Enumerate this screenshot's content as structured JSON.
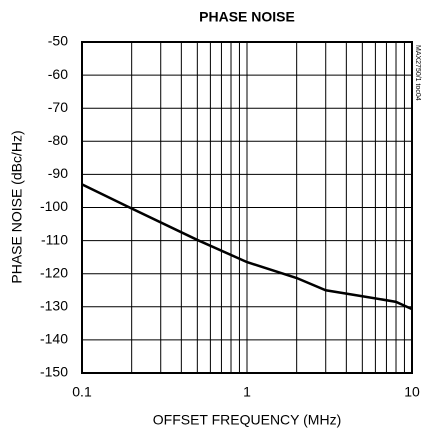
{
  "chart_data": {
    "type": "line",
    "title": "PHASE NOISE",
    "xlabel": "OFFSET FREQUENCY (MHz)",
    "ylabel": "PHASE NOISE (dBc/Hz)",
    "annotation": "MAX2750/1 toc04",
    "xscale": "log",
    "x": [
      0.1,
      0.2,
      0.5,
      1,
      2,
      3,
      5,
      8,
      10
    ],
    "series": [
      {
        "name": "phase-noise",
        "color": "#000000",
        "values": [
          -93,
          -100.3,
          -109.8,
          -116.5,
          -121.3,
          -125,
          -126.8,
          -128.5,
          -130.7
        ]
      }
    ],
    "xlim": [
      0.1,
      10
    ],
    "xticks": [
      0.1,
      1,
      10
    ],
    "x_minor_ticks": [
      0.2,
      0.3,
      0.4,
      0.5,
      0.6,
      0.7,
      0.8,
      0.9,
      2,
      3,
      4,
      5,
      6,
      7,
      8,
      9
    ],
    "ylim": [
      -150,
      -50
    ],
    "yticks": [
      -50,
      -60,
      -70,
      -80,
      -90,
      -100,
      -110,
      -120,
      -130,
      -140,
      -150
    ],
    "grid": true
  }
}
